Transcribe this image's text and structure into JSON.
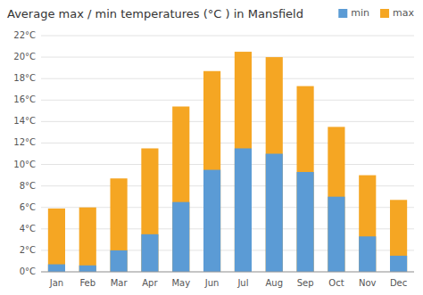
{
  "chart_data": {
    "type": "bar",
    "title": "Average max / min temperatures (°C ) in Mansfield",
    "categories": [
      "Jan",
      "Feb",
      "Mar",
      "Apr",
      "May",
      "Jun",
      "Jul",
      "Aug",
      "Sep",
      "Oct",
      "Nov",
      "Dec"
    ],
    "series": [
      {
        "name": "min",
        "color": "#5b9bd5",
        "values": [
          0.7,
          0.6,
          2.0,
          3.5,
          6.5,
          9.5,
          11.5,
          11.0,
          9.3,
          7.0,
          3.3,
          1.5
        ]
      },
      {
        "name": "max",
        "color": "#f5a623",
        "values": [
          5.9,
          6.0,
          8.7,
          11.5,
          15.4,
          18.7,
          20.5,
          20.0,
          17.3,
          13.5,
          9.0,
          6.7
        ]
      }
    ],
    "ylim": [
      0,
      22
    ],
    "yticks": [
      {
        "value": 0,
        "label": "0°C"
      },
      {
        "value": 2,
        "label": "2°C"
      },
      {
        "value": 4,
        "label": "4°C"
      },
      {
        "value": 6,
        "label": "6°C"
      },
      {
        "value": 8,
        "label": "8°C"
      },
      {
        "value": 10,
        "label": "10°C"
      },
      {
        "value": 12,
        "label": "12°C"
      },
      {
        "value": 14,
        "label": "14°C"
      },
      {
        "value": 16,
        "label": "16°C"
      },
      {
        "value": 18,
        "label": "18°C"
      },
      {
        "value": 20,
        "label": "20°C"
      },
      {
        "value": 22,
        "label": "22°C"
      }
    ],
    "grid": true,
    "legend": "top-right",
    "stacked": false
  }
}
